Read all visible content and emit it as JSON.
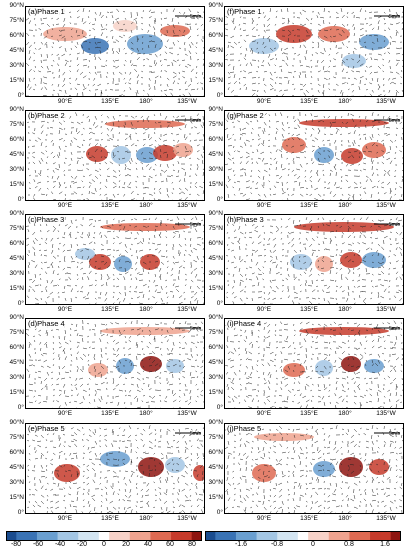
{
  "latitude_labels": [
    "90°N",
    "75°N",
    "60°N",
    "45°N",
    "30°N",
    "15°N",
    "0°"
  ],
  "longitude_labels": [
    "90°E",
    "135°E",
    "180°",
    "135°W"
  ],
  "reference_arrow": "5m/s",
  "left_panels": [
    {
      "label": "(a)Phase 1"
    },
    {
      "label": "(b)Phase 2"
    },
    {
      "label": "(c)Phase 3"
    },
    {
      "label": "(d)Phase 4"
    },
    {
      "label": "(e)Phase 5"
    }
  ],
  "right_panels": [
    {
      "label": "(f)Phase 1"
    },
    {
      "label": "(g)Phase 2"
    },
    {
      "label": "(h)Phase 3"
    },
    {
      "label": "(i)Phase 4"
    },
    {
      "label": "(j)Phase 5"
    }
  ],
  "left_colorbar": {
    "ticks": [
      "-80",
      "-60",
      "-40",
      "-20",
      "0",
      "20",
      "40",
      "60",
      "80"
    ]
  },
  "right_colorbar": {
    "ticks": [
      "-1.6",
      "-0.8",
      "0",
      "0.8",
      "1.6"
    ]
  },
  "colors": {
    "colormap": [
      "#1a4c8f",
      "#3a73b5",
      "#6a9fd0",
      "#a3c6e4",
      "#d3e5f2",
      "#ffffff",
      "#f7d2c8",
      "#efa38f",
      "#de6a52",
      "#c63b2b",
      "#8e1510"
    ]
  }
}
